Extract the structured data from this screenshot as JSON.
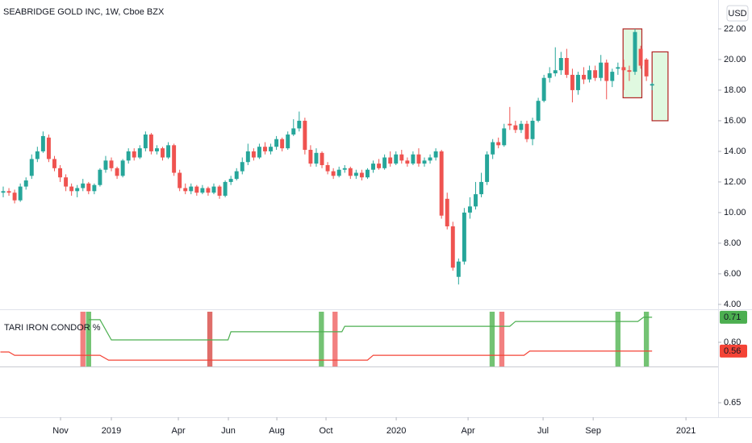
{
  "chart_data": [
    {
      "type": "candlestick",
      "title": "SEABRIDGE GOLD INC, 1W, Cboe BZX",
      "currency": "USD",
      "up_color": "#26a69a",
      "down_color": "#ef5350",
      "xlim": [
        -0.567,
        125.6
      ],
      "ylim": [
        3.68,
        23.89
      ],
      "yticks": [
        {
          "value": 4,
          "label": "4.00"
        },
        {
          "value": 6,
          "label": "6.00"
        },
        {
          "value": 8,
          "label": "8.00"
        },
        {
          "value": 10,
          "label": "10.00"
        },
        {
          "value": 12,
          "label": "12.00"
        },
        {
          "value": 14,
          "label": "14.00"
        },
        {
          "value": 16,
          "label": "16.00"
        },
        {
          "value": 18,
          "label": "18.00"
        },
        {
          "value": 20,
          "label": "20.00"
        },
        {
          "value": 22,
          "label": "22.00"
        }
      ],
      "xticks": [
        {
          "value": 10.07,
          "label": "Nov"
        },
        {
          "value": 19.0,
          "label": "2019"
        },
        {
          "value": 30.77,
          "label": "Apr"
        },
        {
          "value": 39.56,
          "label": "Jun"
        },
        {
          "value": 48.07,
          "label": "Aug"
        },
        {
          "value": 56.71,
          "label": "Oct"
        },
        {
          "value": 69.05,
          "label": "2020"
        },
        {
          "value": 81.67,
          "label": "Apr"
        },
        {
          "value": 94.85,
          "label": "Jul"
        },
        {
          "value": 103.65,
          "label": "Sep"
        },
        {
          "value": 119.95,
          "label": "2021"
        }
      ],
      "ohlc": [
        [
          11.3,
          11.7,
          11.0,
          11.4
        ],
        [
          11.4,
          11.6,
          11.1,
          11.3
        ],
        [
          11.3,
          11.5,
          10.6,
          10.8
        ],
        [
          10.8,
          11.9,
          10.7,
          11.7
        ],
        [
          11.7,
          12.3,
          11.5,
          12.1
        ],
        [
          12.4,
          13.8,
          12.2,
          13.5
        ],
        [
          13.5,
          14.3,
          13.3,
          14.0
        ],
        [
          14.0,
          15.3,
          13.9,
          15.0
        ],
        [
          14.9,
          15.1,
          13.3,
          13.5
        ],
        [
          13.5,
          13.7,
          12.7,
          12.9
        ],
        [
          12.9,
          13.1,
          12.0,
          12.3
        ],
        [
          12.3,
          12.5,
          11.4,
          11.7
        ],
        [
          11.7,
          11.9,
          11.1,
          11.4
        ],
        [
          11.4,
          11.8,
          11.0,
          11.6
        ],
        [
          11.6,
          12.2,
          11.4,
          11.9
        ],
        [
          11.9,
          12.0,
          11.2,
          11.4
        ],
        [
          11.4,
          11.9,
          11.2,
          11.8
        ],
        [
          11.8,
          12.9,
          11.7,
          12.8
        ],
        [
          12.8,
          13.7,
          12.6,
          13.4
        ],
        [
          13.4,
          13.6,
          12.7,
          12.9
        ],
        [
          12.9,
          13.0,
          12.2,
          12.4
        ],
        [
          12.4,
          13.5,
          12.3,
          13.4
        ],
        [
          13.4,
          14.2,
          13.2,
          14.0
        ],
        [
          14.0,
          14.2,
          13.4,
          13.6
        ],
        [
          13.6,
          14.4,
          13.5,
          14.2
        ],
        [
          14.2,
          15.3,
          14.0,
          15.1
        ],
        [
          15.1,
          15.2,
          13.8,
          14.0
        ],
        [
          14.0,
          14.4,
          13.8,
          14.2
        ],
        [
          14.2,
          14.3,
          13.4,
          13.6
        ],
        [
          13.6,
          14.6,
          13.5,
          14.4
        ],
        [
          14.4,
          14.5,
          12.4,
          12.6
        ],
        [
          12.6,
          12.8,
          11.4,
          11.6
        ],
        [
          11.6,
          11.9,
          11.2,
          11.4
        ],
        [
          11.4,
          11.9,
          11.2,
          11.7
        ],
        [
          11.7,
          11.8,
          11.1,
          11.3
        ],
        [
          11.3,
          11.8,
          11.2,
          11.6
        ],
        [
          11.6,
          11.7,
          11.1,
          11.3
        ],
        [
          11.3,
          11.9,
          11.2,
          11.7
        ],
        [
          11.7,
          11.8,
          10.9,
          11.1
        ],
        [
          11.1,
          12.1,
          11.0,
          12.0
        ],
        [
          12.0,
          12.4,
          11.8,
          12.2
        ],
        [
          12.2,
          12.9,
          12.1,
          12.7
        ],
        [
          12.7,
          13.6,
          12.5,
          13.3
        ],
        [
          13.3,
          14.5,
          13.1,
          14.0
        ],
        [
          14.0,
          14.2,
          13.4,
          13.6
        ],
        [
          13.6,
          14.5,
          13.5,
          14.3
        ],
        [
          14.3,
          14.6,
          13.8,
          14.0
        ],
        [
          14.0,
          14.5,
          13.8,
          14.3
        ],
        [
          14.3,
          15.0,
          14.1,
          14.8
        ],
        [
          14.8,
          14.9,
          14.0,
          14.2
        ],
        [
          14.2,
          15.3,
          14.1,
          15.1
        ],
        [
          15.1,
          16.1,
          15.0,
          15.5
        ],
        [
          15.5,
          16.6,
          15.3,
          16.0
        ],
        [
          16.0,
          16.2,
          13.8,
          14.1
        ],
        [
          14.1,
          14.4,
          13.0,
          13.2
        ],
        [
          13.2,
          14.2,
          13.0,
          13.9
        ],
        [
          13.9,
          14.0,
          12.9,
          13.1
        ],
        [
          13.1,
          13.3,
          12.5,
          12.7
        ],
        [
          12.7,
          12.9,
          12.2,
          12.4
        ],
        [
          12.4,
          13.0,
          12.3,
          12.8
        ],
        [
          12.8,
          13.1,
          12.6,
          12.9
        ],
        [
          12.9,
          13.0,
          12.2,
          12.4
        ],
        [
          12.4,
          12.8,
          12.2,
          12.6
        ],
        [
          12.6,
          12.8,
          12.1,
          12.3
        ],
        [
          12.3,
          12.9,
          12.2,
          12.8
        ],
        [
          12.8,
          13.4,
          12.6,
          13.2
        ],
        [
          13.2,
          13.5,
          12.8,
          12.9
        ],
        [
          12.9,
          13.8,
          12.8,
          13.6
        ],
        [
          13.6,
          14.0,
          13.0,
          13.2
        ],
        [
          13.2,
          14.0,
          13.1,
          13.8
        ],
        [
          13.8,
          14.1,
          13.2,
          13.4
        ],
        [
          13.4,
          13.6,
          13.0,
          13.2
        ],
        [
          13.2,
          14.0,
          13.1,
          13.8
        ],
        [
          13.8,
          14.2,
          13.0,
          13.2
        ],
        [
          13.2,
          13.6,
          13.0,
          13.4
        ],
        [
          13.4,
          13.8,
          13.2,
          13.6
        ],
        [
          13.6,
          14.2,
          13.4,
          14.0
        ],
        [
          14.0,
          14.1,
          9.6,
          9.8
        ],
        [
          10.9,
          11.3,
          8.9,
          9.1
        ],
        [
          9.1,
          9.4,
          6.2,
          6.4
        ],
        [
          5.8,
          7.0,
          5.3,
          6.8
        ],
        [
          6.8,
          10.3,
          6.6,
          10.0
        ],
        [
          10.0,
          11.0,
          9.6,
          10.4
        ],
        [
          10.4,
          12.0,
          10.2,
          11.2
        ],
        [
          11.2,
          12.6,
          11.0,
          12.0
        ],
        [
          12.0,
          14.0,
          11.8,
          13.8
        ],
        [
          13.8,
          14.8,
          13.5,
          14.6
        ],
        [
          14.6,
          14.9,
          14.2,
          14.4
        ],
        [
          14.4,
          15.8,
          14.3,
          15.5
        ],
        [
          15.8,
          16.9,
          15.4,
          15.7
        ],
        [
          15.7,
          16.0,
          15.2,
          15.4
        ],
        [
          15.4,
          16.0,
          15.2,
          15.8
        ],
        [
          15.8,
          16.0,
          14.6,
          14.8
        ],
        [
          14.8,
          16.2,
          14.4,
          16.0
        ],
        [
          16.0,
          17.5,
          15.9,
          17.3
        ],
        [
          17.3,
          19.0,
          17.2,
          18.8
        ],
        [
          18.8,
          19.5,
          18.5,
          19.1
        ],
        [
          19.1,
          20.8,
          18.9,
          19.3
        ],
        [
          19.3,
          20.5,
          19.0,
          20.1
        ],
        [
          20.1,
          20.7,
          18.8,
          19.0
        ],
        [
          19.0,
          19.4,
          17.2,
          18.0
        ],
        [
          18.0,
          19.2,
          17.7,
          19.0
        ],
        [
          19.0,
          19.5,
          18.4,
          18.7
        ],
        [
          18.7,
          19.6,
          18.5,
          19.3
        ],
        [
          19.3,
          19.6,
          18.6,
          18.8
        ],
        [
          18.8,
          20.3,
          18.6,
          19.8
        ],
        [
          19.8,
          20.0,
          17.4,
          18.6
        ],
        [
          18.6,
          19.4,
          18.2,
          19.2
        ],
        [
          19.4,
          19.8,
          19.0,
          19.5
        ],
        [
          19.5,
          20.0,
          18.0,
          19.3
        ],
        [
          19.3,
          19.6,
          18.6,
          19.2
        ],
        [
          19.2,
          22.0,
          19.0,
          21.8
        ],
        [
          20.7,
          20.9,
          19.4,
          19.6
        ],
        [
          20.0,
          20.1,
          18.6,
          18.9
        ],
        [
          18.3,
          18.5,
          18.0,
          18.4
        ]
      ],
      "boxes": [
        {
          "x": [
            108.9,
            112.2
          ],
          "y": [
            17.5,
            22.0
          ]
        },
        {
          "x": [
            114,
            116.8
          ],
          "y": [
            16.0,
            20.5
          ]
        }
      ],
      "box_fill": "#d5f7d5",
      "box_edge": "#b22222"
    },
    {
      "type": "line",
      "title": "TARI IRON CONDOR %",
      "xlim": [
        -0.567,
        125.6
      ],
      "ylim": [
        0.49,
        0.743
      ],
      "yticks": [
        {
          "value": 0.6,
          "label": "0.60"
        }
      ],
      "series": [
        {
          "color": "#4caf50",
          "last_label": "0.71",
          "x": [
            15,
            17,
            19,
            39.5,
            40,
            59.5,
            60,
            89,
            90,
            111.5,
            112.5,
            114
          ],
          "values": [
            0.703,
            0.703,
            0.611,
            0.611,
            0.648,
            0.648,
            0.673,
            0.673,
            0.695,
            0.695,
            0.714,
            0.714
          ]
        },
        {
          "color": "#f44336",
          "last_label": "0.56",
          "x": [
            -0.5,
            1,
            2,
            17,
            18.5,
            64,
            65,
            91.5,
            92.5,
            114
          ],
          "values": [
            0.556,
            0.556,
            0.541,
            0.541,
            0.519,
            0.519,
            0.541,
            0.541,
            0.56,
            0.56
          ]
        }
      ],
      "signals": [
        {
          "x": 14.0,
          "color": "#f06a6a"
        },
        {
          "x": 15.0,
          "color": "#5cb85c"
        },
        {
          "x": 36.3,
          "color": "#d9534f"
        },
        {
          "x": 55.9,
          "color": "#5cb85c"
        },
        {
          "x": 58.3,
          "color": "#f06a6a"
        },
        {
          "x": 85.9,
          "color": "#5cb85c"
        },
        {
          "x": 87.6,
          "color": "#f06a6a"
        },
        {
          "x": 108.0,
          "color": "#5cb85c"
        },
        {
          "x": 113.0,
          "color": "#5cb85c"
        }
      ]
    },
    {
      "type": "pane",
      "ylim": [
        0.6,
        0.775
      ],
      "yticks": [
        {
          "value": 0.65,
          "label": "0.65"
        }
      ]
    }
  ]
}
